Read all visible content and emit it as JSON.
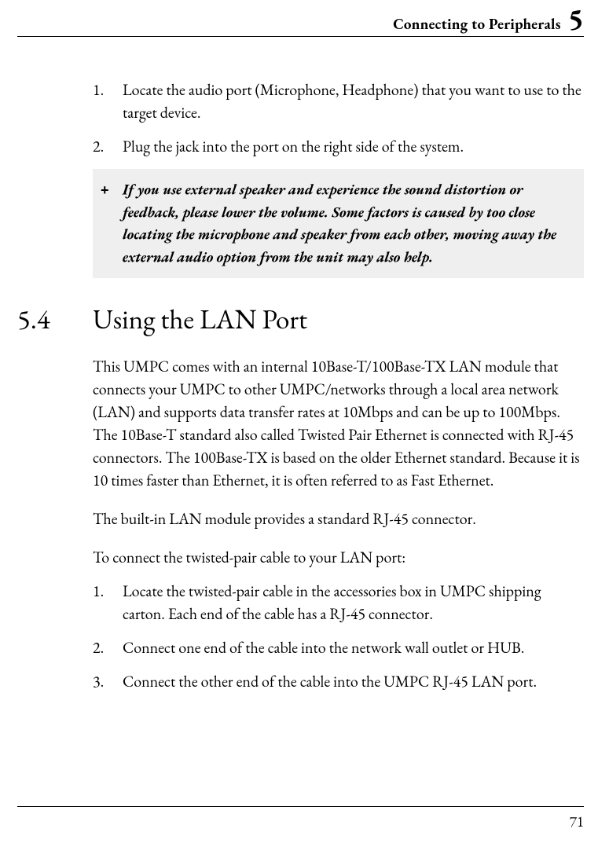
{
  "header": {
    "title": "Connecting to Peripherals",
    "chapter": "5"
  },
  "list_a": [
    {
      "num": "1.",
      "text": "Locate the audio port (Microphone, Headphone) that you want to use to the target device."
    },
    {
      "num": "2.",
      "text": "Plug the jack into the port on the right side of the system."
    }
  ],
  "note": {
    "bullet": "+",
    "text": "If you use external speaker and experience the sound distortion or feedback, please lower the volume. Some factors is caused by too close locating the microphone and speaker from each other, moving away the external audio option from the unit may also help."
  },
  "section": {
    "num": "5.4",
    "title": "Using the LAN Port"
  },
  "para1": "This UMPC comes with an internal 10Base-T/100Base-TX LAN module that connects your UMPC to other UMPC/networks through a local area network (LAN) and supports data transfer rates at 10Mbps and can be up to 100Mbps. The 10Base-T standard also called Twisted Pair Ethernet is connected with RJ-45 connectors. The 100Base-TX is based on the older Ethernet standard. Because it is 10 times faster than Ethernet, it is often referred to as Fast Ethernet.",
  "para2": "The built-in LAN module provides a standard RJ-45 connector.",
  "para3": "To connect the twisted-pair cable to your LAN port:",
  "list_b": [
    {
      "num": "1.",
      "text": "Locate the twisted-pair cable in the accessories box in UMPC shipping carton. Each end of the cable has a RJ-45 connector."
    },
    {
      "num": "2.",
      "text": "Connect one end of the cable into the network wall outlet or HUB."
    },
    {
      "num": "3.",
      "text": "Connect the other end of the cable into the UMPC RJ-45 LAN port."
    }
  ],
  "page_number": "71"
}
